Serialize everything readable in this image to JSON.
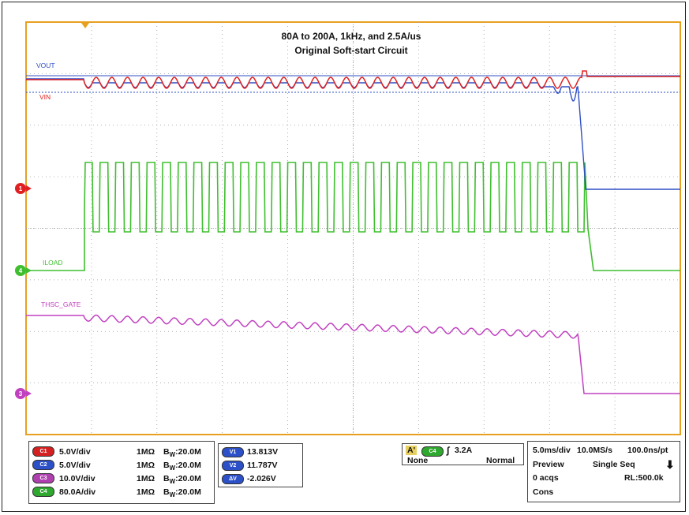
{
  "chart_data": {
    "type": "line",
    "title": "80A to 200A, 1kHz, and 2.5A/us",
    "subtitle": "Original  Soft-start Circuit",
    "grid": true,
    "x_divisions": 10,
    "y_divisions": 8,
    "colors": {
      "vout": "#2f4fc4",
      "vin": "#e02020",
      "iload": "#3fbf2f",
      "gate": "#c040c0",
      "frame": "#e8a020"
    },
    "series": [
      {
        "name": "VOUT",
        "label": "VOUT",
        "color": "#2f4fc4"
      },
      {
        "name": "VIN",
        "label": "VIN",
        "color": "#e02020"
      },
      {
        "name": "ILOAD",
        "label": "ILOAD",
        "color": "#3fbf2f"
      },
      {
        "name": "THSC_GATE",
        "label": "THSC_GATE",
        "color": "#c040c0"
      }
    ],
    "markers": [
      "1",
      "4",
      "3"
    ]
  },
  "channels": [
    {
      "tag": "C1",
      "scale": "5.0V/div",
      "coupling": "1MΩ",
      "bw": "20.0M",
      "color": "#d42020"
    },
    {
      "tag": "C2",
      "scale": "5.0V/div",
      "coupling": "1MΩ",
      "bw": "20.0M",
      "color": "#2b50c8"
    },
    {
      "tag": "C3",
      "scale": "10.0V/div",
      "coupling": "1MΩ",
      "bw": "20.0M",
      "color": "#b040b0"
    },
    {
      "tag": "C4",
      "scale": "80.0A/div",
      "coupling": "1MΩ",
      "bw": "20.0M",
      "color": "#2fa82f"
    }
  ],
  "bw_label": "W",
  "cursors": [
    {
      "tag": "V1",
      "value": "13.813V"
    },
    {
      "tag": "V2",
      "value": "11.787V"
    },
    {
      "tag": "ΔV",
      "value": "-2.026V"
    }
  ],
  "trigger": {
    "tag": "A'",
    "source": "C4",
    "slope": "∫",
    "level": "3.2A",
    "coupling": "None",
    "mode": "Normal"
  },
  "acquisition": {
    "timebase": "5.0ms/div",
    "sample_rate": "10.0MS/s",
    "resolution": "100.0ns/pt",
    "state": "Preview",
    "seq": "Single Seq",
    "acqs": "0 acqs",
    "record_length": "RL:500.0k",
    "mode": "Cons"
  }
}
